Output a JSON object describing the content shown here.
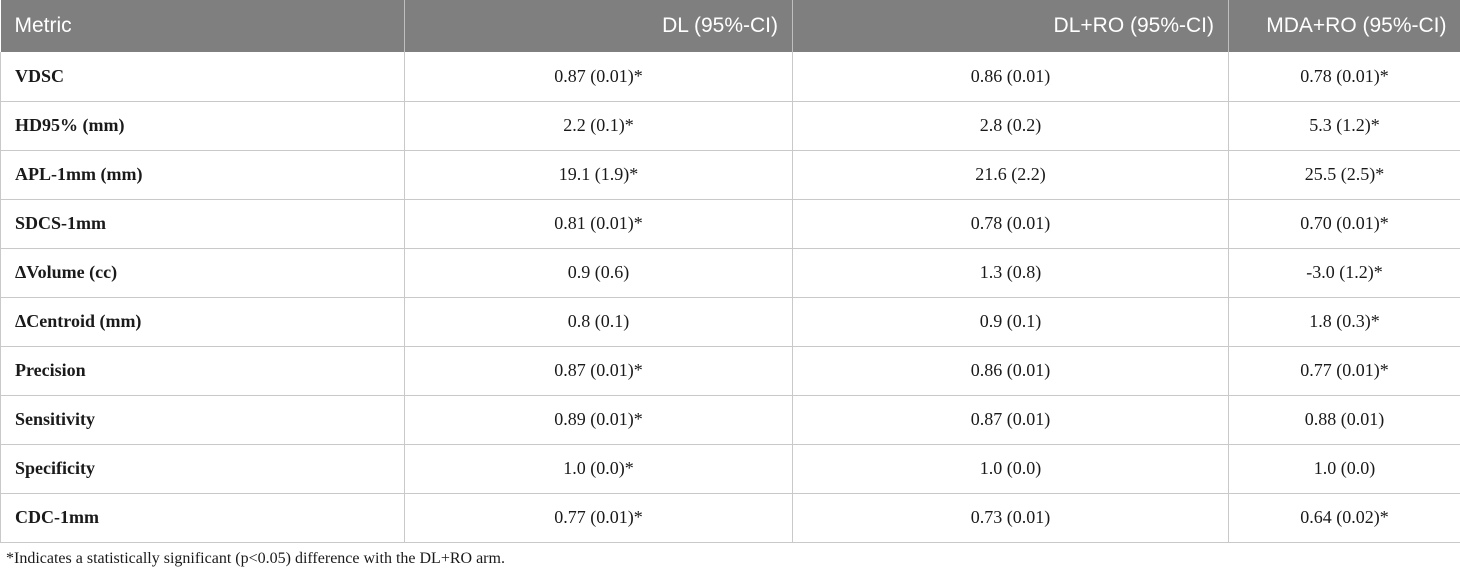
{
  "table": {
    "headers": [
      "Metric",
      "DL (95%-CI)",
      "DL+RO (95%-CI)",
      "MDA+RO (95%-CI)"
    ],
    "rows": [
      [
        "VDSC",
        "0.87 (0.01)*",
        "0.86 (0.01)",
        "0.78 (0.01)*"
      ],
      [
        "HD95% (mm)",
        "2.2 (0.1)*",
        "2.8 (0.2)",
        "5.3 (1.2)*"
      ],
      [
        "APL-1mm (mm)",
        "19.1 (1.9)*",
        "21.6 (2.2)",
        "25.5 (2.5)*"
      ],
      [
        "SDCS-1mm",
        "0.81 (0.01)*",
        "0.78 (0.01)",
        "0.70 (0.01)*"
      ],
      [
        "ΔVolume (cc)",
        "0.9 (0.6)",
        "1.3 (0.8)",
        "-3.0 (1.2)*"
      ],
      [
        "ΔCentroid (mm)",
        "0.8 (0.1)",
        "0.9 (0.1)",
        "1.8 (0.3)*"
      ],
      [
        "Precision",
        "0.87 (0.01)*",
        "0.86 (0.01)",
        "0.77 (0.01)*"
      ],
      [
        "Sensitivity",
        "0.89 (0.01)*",
        "0.87 (0.01)",
        "0.88 (0.01)"
      ],
      [
        "Specificity",
        "1.0 (0.0)*",
        "1.0 (0.0)",
        "1.0 (0.0)"
      ],
      [
        "CDC-1mm",
        "0.77 (0.01)*",
        "0.73 (0.01)",
        "0.64 (0.02)*"
      ]
    ]
  },
  "footnote": "*Indicates a statistically significant (p<0.05) difference with the DL+RO arm.",
  "colors": {
    "header_bg": "#7f7f7f",
    "header_text": "#ffffff",
    "grid": "#c9c9c9"
  }
}
